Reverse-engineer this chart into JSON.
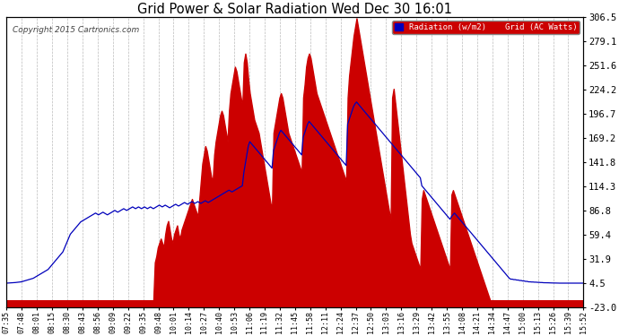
{
  "title": "Grid Power & Solar Radiation Wed Dec 30 16:01",
  "copyright": "Copyright 2015 Cartronics.com",
  "ylabel_right_ticks": [
    306.5,
    279.1,
    251.6,
    224.2,
    196.7,
    169.2,
    141.8,
    114.3,
    86.8,
    59.4,
    31.9,
    4.5,
    -23.0
  ],
  "ylim": [
    -23.0,
    306.5
  ],
  "background_color": "#ffffff",
  "plot_bg_color": "#ffffff",
  "grid_color": "#bbbbbb",
  "red_fill_color": "#cc0000",
  "blue_line_color": "#0000bb",
  "x_tick_labels": [
    "07:35",
    "07:48",
    "08:01",
    "08:15",
    "08:30",
    "08:43",
    "08:56",
    "09:09",
    "09:22",
    "09:35",
    "09:48",
    "10:01",
    "10:14",
    "10:27",
    "10:40",
    "10:53",
    "11:06",
    "11:19",
    "11:32",
    "11:45",
    "11:58",
    "12:11",
    "12:24",
    "12:37",
    "12:50",
    "13:03",
    "13:16",
    "13:29",
    "13:42",
    "13:55",
    "14:08",
    "14:21",
    "14:34",
    "14:47",
    "15:00",
    "15:13",
    "15:26",
    "15:39",
    "15:52"
  ],
  "num_points": 390,
  "red_data": [
    -15,
    -15,
    -15,
    -15,
    -15,
    -15,
    -15,
    -15,
    -15,
    -15,
    -15,
    -15,
    -15,
    -15,
    -15,
    -15,
    -15,
    -15,
    -15,
    -15,
    -15,
    -15,
    -15,
    -15,
    -15,
    -15,
    -15,
    -15,
    -15,
    -15,
    -15,
    -15,
    -15,
    -15,
    -15,
    -15,
    -15,
    -15,
    -15,
    -15,
    -15,
    -15,
    -15,
    -15,
    -15,
    -15,
    -15,
    -15,
    -15,
    -15,
    -15,
    -15,
    -15,
    -15,
    -15,
    -15,
    -15,
    -15,
    -15,
    -15,
    -15,
    -15,
    -15,
    -15,
    -15,
    -15,
    -15,
    -15,
    -15,
    -15,
    -15,
    -15,
    -15,
    -15,
    -15,
    -15,
    -15,
    -15,
    -15,
    -15,
    -15,
    -15,
    -15,
    -15,
    -15,
    -15,
    -15,
    -15,
    -15,
    -15,
    -15,
    -15,
    -15,
    -15,
    -15,
    -15,
    -15,
    -15,
    -15,
    -15,
    28,
    35,
    45,
    50,
    55,
    50,
    45,
    60,
    70,
    75,
    65,
    55,
    50,
    60,
    65,
    70,
    60,
    55,
    65,
    70,
    75,
    80,
    85,
    90,
    95,
    100,
    95,
    90,
    85,
    80,
    100,
    120,
    140,
    150,
    160,
    155,
    145,
    135,
    125,
    120,
    150,
    165,
    175,
    185,
    195,
    200,
    195,
    185,
    175,
    165,
    200,
    220,
    230,
    240,
    250,
    245,
    235,
    225,
    215,
    205,
    255,
    265,
    255,
    235,
    220,
    210,
    200,
    190,
    185,
    180,
    175,
    165,
    155,
    145,
    135,
    125,
    115,
    105,
    95,
    90,
    175,
    185,
    195,
    205,
    215,
    220,
    215,
    205,
    195,
    185,
    175,
    170,
    165,
    160,
    155,
    150,
    145,
    140,
    135,
    130,
    215,
    230,
    250,
    260,
    265,
    260,
    250,
    240,
    230,
    220,
    215,
    210,
    205,
    200,
    195,
    190,
    185,
    180,
    175,
    170,
    165,
    160,
    155,
    150,
    145,
    140,
    135,
    130,
    125,
    120,
    215,
    240,
    255,
    270,
    285,
    295,
    305,
    295,
    285,
    275,
    265,
    255,
    245,
    235,
    225,
    215,
    205,
    195,
    185,
    175,
    165,
    155,
    145,
    135,
    125,
    115,
    105,
    95,
    85,
    75,
    215,
    225,
    210,
    195,
    180,
    165,
    150,
    135,
    120,
    105,
    90,
    75,
    60,
    50,
    45,
    40,
    35,
    30,
    25,
    20,
    100,
    110,
    105,
    100,
    95,
    90,
    85,
    80,
    75,
    70,
    65,
    60,
    55,
    50,
    45,
    40,
    35,
    30,
    25,
    20,
    105,
    110,
    105,
    100,
    95,
    90,
    85,
    80,
    75,
    70,
    65,
    60,
    55,
    50,
    45,
    40,
    35,
    30,
    25,
    20,
    15,
    10,
    5,
    0,
    -5,
    -10,
    -15,
    -15,
    -15,
    -15,
    -15,
    -15,
    -15,
    -15,
    -15,
    -15,
    -15,
    -15,
    -15,
    -15,
    -15,
    -15,
    -15,
    -15,
    -15,
    -15,
    -15,
    -15,
    -15,
    -15,
    -15,
    -15,
    -15,
    -15,
    -15,
    -15,
    -15,
    -15,
    -15,
    -15,
    -15,
    -15,
    -15,
    -15,
    -15,
    -15,
    -15,
    -15,
    -15,
    -15,
    -15,
    -15,
    -15,
    -15,
    -15,
    -15,
    -15,
    -15,
    -15,
    -15,
    -15,
    -15,
    -15,
    -15,
    -15,
    -15,
    -15,
    -15,
    -15,
    -15
  ],
  "blue_data": [
    4.5,
    4.6,
    4.7,
    4.8,
    4.9,
    5.0,
    5.2,
    5.4,
    5.6,
    5.8,
    6.0,
    6.5,
    7.0,
    7.5,
    8.0,
    8.5,
    9.0,
    9.5,
    10.0,
    11.0,
    12.0,
    13.0,
    14.0,
    15.0,
    16.0,
    17.0,
    18.0,
    19.0,
    20.0,
    22.0,
    24.0,
    26.0,
    28.0,
    30.0,
    32.0,
    34.0,
    36.0,
    38.0,
    40.0,
    44.0,
    48.0,
    52.0,
    56.0,
    60.0,
    62.0,
    64.0,
    66.0,
    68.0,
    70.0,
    72.0,
    74.0,
    75.0,
    76.0,
    77.0,
    78.0,
    79.0,
    80.0,
    81.0,
    82.0,
    83.0,
    84.0,
    83.0,
    82.0,
    83.0,
    84.0,
    85.0,
    84.0,
    83.0,
    82.0,
    83.0,
    84.0,
    85.0,
    86.0,
    87.0,
    86.0,
    85.0,
    86.0,
    87.0,
    88.0,
    89.0,
    88.0,
    87.0,
    88.0,
    89.0,
    90.0,
    91.0,
    90.0,
    89.0,
    90.0,
    91.0,
    90.0,
    89.0,
    90.0,
    91.0,
    90.0,
    89.0,
    90.0,
    91.0,
    90.0,
    89.0,
    90.0,
    91.0,
    92.0,
    93.0,
    92.0,
    91.0,
    92.0,
    93.0,
    92.0,
    91.0,
    90.0,
    91.0,
    92.0,
    93.0,
    94.0,
    93.0,
    92.0,
    93.0,
    94.0,
    95.0,
    96.0,
    95.0,
    94.0,
    95.0,
    96.0,
    97.0,
    96.0,
    95.0,
    96.0,
    97.0,
    96.0,
    95.0,
    96.0,
    97.0,
    98.0,
    97.0,
    96.0,
    97.0,
    98.0,
    99.0,
    100.0,
    101.0,
    102.0,
    103.0,
    104.0,
    105.0,
    106.0,
    107.0,
    108.0,
    109.0,
    110.0,
    109.0,
    108.0,
    109.0,
    110.0,
    111.0,
    112.0,
    113.0,
    114.0,
    115.0,
    130.0,
    140.0,
    150.0,
    160.0,
    165.0,
    163.0,
    161.0,
    159.0,
    157.0,
    155.0,
    153.0,
    151.0,
    149.0,
    147.0,
    145.0,
    143.0,
    141.0,
    139.0,
    137.0,
    135.0,
    155.0,
    160.0,
    165.0,
    170.0,
    175.0,
    178.0,
    176.0,
    174.0,
    172.0,
    170.0,
    168.0,
    166.0,
    164.0,
    162.0,
    160.0,
    158.0,
    156.0,
    154.0,
    152.0,
    150.0,
    170.0,
    175.0,
    180.0,
    185.0,
    188.0,
    186.0,
    184.0,
    182.0,
    180.0,
    178.0,
    176.0,
    174.0,
    172.0,
    170.0,
    168.0,
    166.0,
    164.0,
    162.0,
    160.0,
    158.0,
    156.0,
    154.0,
    152.0,
    150.0,
    148.0,
    146.0,
    144.0,
    142.0,
    140.0,
    138.0,
    185.0,
    190.0,
    195.0,
    200.0,
    205.0,
    208.0,
    210.0,
    208.0,
    206.0,
    204.0,
    202.0,
    200.0,
    198.0,
    196.0,
    194.0,
    192.0,
    190.0,
    188.0,
    186.0,
    184.0,
    182.0,
    180.0,
    178.0,
    176.0,
    174.0,
    172.0,
    170.0,
    168.0,
    166.0,
    164.0,
    162.0,
    160.0,
    158.0,
    156.0,
    154.0,
    152.0,
    150.0,
    148.0,
    146.0,
    144.0,
    142.0,
    140.0,
    138.0,
    136.0,
    134.0,
    132.0,
    130.0,
    128.0,
    126.0,
    124.0,
    115.0,
    113.0,
    111.0,
    109.0,
    107.0,
    105.0,
    103.0,
    101.0,
    99.0,
    97.0,
    95.0,
    93.0,
    91.0,
    89.0,
    87.0,
    85.0,
    83.0,
    81.0,
    79.0,
    77.0,
    80.0,
    82.0,
    84.0,
    82.0,
    80.0,
    78.0,
    76.0,
    74.0,
    72.0,
    70.0,
    68.0,
    66.0,
    64.0,
    62.0,
    60.0,
    58.0,
    56.0,
    54.0,
    52.0,
    50.0,
    48.0,
    46.0,
    44.0,
    42.0,
    40.0,
    38.0,
    36.0,
    34.0,
    32.0,
    30.0,
    28.0,
    26.0,
    24.0,
    22.0,
    20.0,
    18.0,
    16.0,
    14.0,
    12.0,
    10.0,
    9.0,
    9.0,
    8.5,
    8.5,
    8.0,
    8.0,
    7.5,
    7.5,
    7.0,
    7.0,
    6.5,
    6.5,
    6.0,
    6.0,
    5.8,
    5.8,
    5.6,
    5.6,
    5.4,
    5.4,
    5.2,
    5.2,
    5.0,
    5.0,
    4.9,
    4.9,
    4.8,
    4.8,
    4.7,
    4.7,
    4.6,
    4.6,
    4.5,
    4.5,
    4.5,
    4.5,
    4.5,
    4.5,
    4.5,
    4.5,
    4.5,
    4.5,
    4.5,
    4.5,
    4.5,
    4.5,
    4.5,
    4.5,
    4.5,
    4.5
  ]
}
